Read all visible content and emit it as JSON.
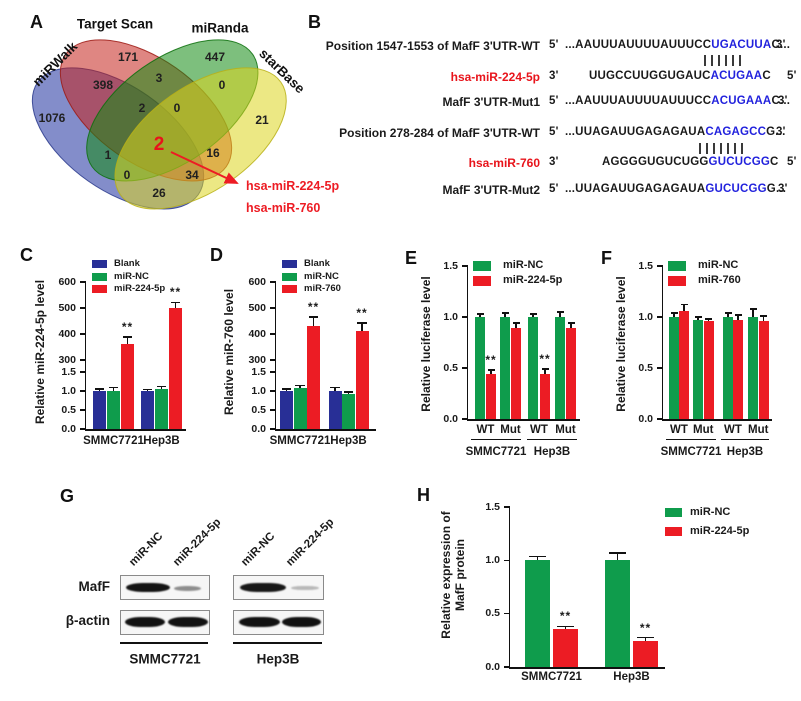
{
  "panels": {
    "A": "A",
    "B": "B",
    "C": "C",
    "D": "D",
    "E": "E",
    "F": "F",
    "G": "G",
    "H": "H"
  },
  "panelA": {
    "sets": [
      {
        "name": "miRWalk",
        "color": "#1e2f9e"
      },
      {
        "name": "Target Scan",
        "color": "#c4231c"
      },
      {
        "name": "miRanda",
        "color": "#128a12"
      },
      {
        "name": "starBase",
        "color": "#ddd51f"
      }
    ],
    "regions": [
      {
        "region": "miRWalk-only",
        "value": "1076"
      },
      {
        "region": "TargetScan-only",
        "value": "171"
      },
      {
        "region": "miRanda-only",
        "value": "447"
      },
      {
        "region": "starBase-only",
        "value": "21"
      },
      {
        "region": "miRWalk-TargetScan",
        "value": "398"
      },
      {
        "region": "TargetScan-miRanda",
        "value": "3"
      },
      {
        "region": "miRanda-starBase",
        "value": "0"
      },
      {
        "region": "miRWalk-miRanda",
        "value": "1"
      },
      {
        "region": "TargetScan-starBase",
        "value": "16"
      },
      {
        "region": "miRWalk-starBase",
        "value": "26"
      },
      {
        "region": "miRWalk-TargetScan-miRanda",
        "value": "2"
      },
      {
        "region": "TargetScan-miRanda-starBase",
        "value": "0"
      },
      {
        "region": "miRWalk-miRanda-starBase",
        "value": "0"
      },
      {
        "region": "miRWalk-TargetScan-starBase",
        "value": "34"
      },
      {
        "region": "all-four",
        "value": "2"
      }
    ],
    "annotation": {
      "line1": "hsa-miR-224-5p",
      "line2": "hsa-miR-760",
      "color": "#ed1c24"
    }
  },
  "panelB": {
    "rows": [
      {
        "label": "Position 1547-1553 of MafF 3'UTR-WT",
        "left_marker": "5'",
        "seq_pre": "...AAUUUAUUUUAUUUCC",
        "seq_match": "UGACUUA",
        "seq_post": "C...",
        "right_marker": "3'",
        "red": false
      },
      {
        "label": "hsa-miR-224-5p",
        "left_marker": "3'",
        "seq_pre": "UUGCCUUGGUGAUC",
        "seq_match": "ACUGAA",
        "seq_post": "C",
        "right_marker": "5'",
        "red": true
      },
      {
        "label": "MafF 3'UTR-Mut1",
        "left_marker": "5'",
        "seq_pre": "...AAUUUAUUUUAUUUCC",
        "seq_match": "ACUGAAA",
        "seq_post": "C...",
        "right_marker": "3'",
        "red": false
      },
      {
        "label": "Position 278-284 of MafF 3'UTR-WT",
        "left_marker": "5'",
        "seq_pre": "...UUAGAUUGAGAGAUA",
        "seq_match": "CAGAGCC",
        "seq_post": "G...",
        "right_marker": "3'",
        "red": false
      },
      {
        "label": "hsa-miR-760",
        "left_marker": "3'",
        "seq_pre": "AGGGGUGUCUGG",
        "seq_match": "GUCUCGG",
        "seq_post": "C",
        "right_marker": "5'",
        "red": true
      },
      {
        "label": "MafF 3'UTR-Mut2",
        "left_marker": "5'",
        "seq_pre": "...UUAGAUUGAGAGAUA",
        "seq_match": "GUCUCGG",
        "seq_post": "G...",
        "right_marker": "3'",
        "red": false
      }
    ]
  },
  "panelG": {
    "row_labels": [
      "MafF",
      "β-actin"
    ],
    "lane_labels": [
      "miR-NC",
      "miR-224-5p",
      "miR-NC",
      "miR-224-5p"
    ],
    "cell_lines": [
      "SMMC7721",
      "Hep3B"
    ]
  },
  "chart_data": [
    {
      "id": "C",
      "type": "bar",
      "ylabel": "Relative miR-224-5p level",
      "categories": [
        "SMMC7721",
        "Hep3B"
      ],
      "series": [
        {
          "name": "Blank",
          "color": "#282f96",
          "values": [
            1.0,
            1.0
          ],
          "errors": [
            0.05,
            0.04
          ],
          "sig": [
            "",
            ""
          ]
        },
        {
          "name": "miR-NC",
          "color": "#0f9c4c",
          "values": [
            1.0,
            1.05
          ],
          "errors": [
            0.09,
            0.07
          ],
          "sig": [
            "",
            ""
          ]
        },
        {
          "name": "miR-224-5p",
          "color": "#ec1c24",
          "values": [
            360,
            500
          ],
          "errors": [
            28,
            22
          ],
          "sig": [
            "**",
            "**"
          ]
        }
      ],
      "y_axis": {
        "broken": true,
        "lower_ticks": [
          "0.0",
          "0.5",
          "1.0",
          "1.5"
        ],
        "upper_ticks": [
          "300",
          "400",
          "500",
          "600"
        ],
        "lower_max": 1.5,
        "upper_min": 300,
        "upper_max": 600
      },
      "legend_position": "top-inside"
    },
    {
      "id": "D",
      "type": "bar",
      "ylabel": "Relative miR-760 level",
      "categories": [
        "SMMC7721",
        "Hep3B"
      ],
      "series": [
        {
          "name": "Blank",
          "color": "#282f96",
          "values": [
            1.0,
            1.0
          ],
          "errors": [
            0.05,
            0.1
          ],
          "sig": [
            "",
            ""
          ]
        },
        {
          "name": "miR-NC",
          "color": "#0f9c4c",
          "values": [
            1.07,
            0.93
          ],
          "errors": [
            0.08,
            0.04
          ],
          "sig": [
            "",
            ""
          ]
        },
        {
          "name": "miR-760",
          "color": "#ec1c24",
          "values": [
            430,
            410
          ],
          "errors": [
            35,
            32
          ],
          "sig": [
            "**",
            "**"
          ]
        }
      ],
      "y_axis": {
        "broken": true,
        "lower_ticks": [
          "0.0",
          "0.5",
          "1.0",
          "1.5"
        ],
        "upper_ticks": [
          "300",
          "400",
          "500",
          "600"
        ],
        "lower_max": 1.5,
        "upper_min": 300,
        "upper_max": 600
      },
      "legend_position": "top-inside"
    },
    {
      "id": "E",
      "type": "bar",
      "ylabel": "Relative luciferase level",
      "categories": [
        "WT",
        "Mut",
        "WT",
        "Mut"
      ],
      "group_labels": [
        "SMMC7721",
        "Hep3B"
      ],
      "series": [
        {
          "name": "miR-NC",
          "color": "#0f9c4c",
          "values": [
            1.0,
            1.0,
            1.0,
            1.0
          ],
          "errors": [
            0.03,
            0.04,
            0.03,
            0.05
          ],
          "sig": [
            "",
            "",
            "",
            ""
          ]
        },
        {
          "name": "miR-224-5p",
          "color": "#ec1c24",
          "values": [
            0.44,
            0.89,
            0.44,
            0.89
          ],
          "errors": [
            0.04,
            0.05,
            0.05,
            0.05
          ],
          "sig": [
            "**",
            "",
            "**",
            ""
          ]
        }
      ],
      "y_axis": {
        "broken": false,
        "lower_ticks": [
          "0.0",
          "0.5",
          "1.0",
          "1.5"
        ],
        "lower_max": 1.5
      },
      "legend_position": "top-inside"
    },
    {
      "id": "F",
      "type": "bar",
      "ylabel": "Relative luciferase level",
      "categories": [
        "WT",
        "Mut",
        "WT",
        "Mut"
      ],
      "group_labels": [
        "SMMC7721",
        "Hep3B"
      ],
      "series": [
        {
          "name": "miR-NC",
          "color": "#0f9c4c",
          "values": [
            1.0,
            0.97,
            1.0,
            1.0
          ],
          "errors": [
            0.04,
            0.03,
            0.04,
            0.08
          ],
          "sig": [
            "",
            "",
            "",
            ""
          ]
        },
        {
          "name": "miR-760",
          "color": "#ec1c24",
          "values": [
            1.06,
            0.96,
            0.97,
            0.96
          ],
          "errors": [
            0.06,
            0.02,
            0.05,
            0.05
          ],
          "sig": [
            "",
            "",
            "",
            ""
          ]
        }
      ],
      "y_axis": {
        "broken": false,
        "lower_ticks": [
          "0.0",
          "0.5",
          "1.0",
          "1.5"
        ],
        "lower_max": 1.5
      },
      "legend_position": "top-inside"
    },
    {
      "id": "H",
      "type": "bar",
      "ylabel": [
        "Relative expression of",
        "MafF protein"
      ],
      "categories": [
        "SMMC7721",
        "Hep3B"
      ],
      "series": [
        {
          "name": "miR-NC",
          "color": "#0f9c4c",
          "values": [
            1.0,
            1.0
          ],
          "errors": [
            0.035,
            0.07
          ],
          "sig": [
            "",
            ""
          ]
        },
        {
          "name": "miR-224-5p",
          "color": "#ec1c24",
          "values": [
            0.36,
            0.24
          ],
          "errors": [
            0.02,
            0.035
          ],
          "sig": [
            "**",
            "**"
          ]
        }
      ],
      "y_axis": {
        "broken": false,
        "lower_ticks": [
          "0.0",
          "0.5",
          "1.0",
          "1.5"
        ],
        "lower_max": 1.5
      },
      "legend_position": "right"
    }
  ]
}
